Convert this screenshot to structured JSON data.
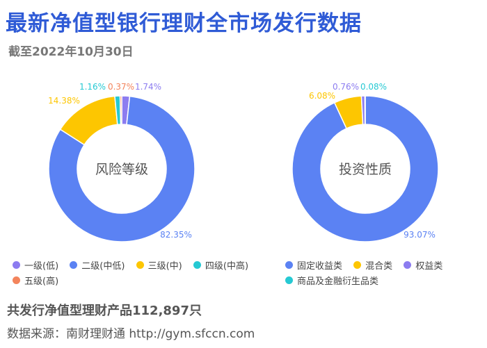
{
  "header": {
    "title": "最新净值型银行理财全市场发行数据",
    "subtitle": "截至2022年10月30日"
  },
  "footer": {
    "total": "共发行净值型理财产品112,897只",
    "source": "数据来源：南财理财通 http://gym.sfccn.com"
  },
  "chart_data": [
    {
      "type": "pie",
      "variant": "donut",
      "center_label": "风险等级",
      "legend_position": "bottom",
      "slices": [
        {
          "name": "一级(低)",
          "value": 1.74,
          "label": "1.74%",
          "color": "#8c7cf0"
        },
        {
          "name": "二级(中低)",
          "value": 82.35,
          "label": "82.35%",
          "color": "#5b82f3"
        },
        {
          "name": "三级(中)",
          "value": 14.38,
          "label": "14.38%",
          "color": "#fdc601"
        },
        {
          "name": "四级(中高)",
          "value": 1.16,
          "label": "1.16%",
          "color": "#26c9d3"
        },
        {
          "name": "五级(高)",
          "value": 0.37,
          "label": "0.37%",
          "color": "#f3845c"
        }
      ]
    },
    {
      "type": "pie",
      "variant": "donut",
      "center_label": "投资性质",
      "legend_position": "bottom",
      "slices": [
        {
          "name": "固定收益类",
          "value": 93.07,
          "label": "93.07%",
          "color": "#5b82f3"
        },
        {
          "name": "混合类",
          "value": 6.08,
          "label": "6.08%",
          "color": "#fdc601"
        },
        {
          "name": "权益类",
          "value": 0.76,
          "label": "0.76%",
          "color": "#8c7cf0"
        },
        {
          "name": "商品及金融衍生品类",
          "value": 0.08,
          "label": "0.08%",
          "color": "#26c9d3"
        }
      ]
    }
  ]
}
